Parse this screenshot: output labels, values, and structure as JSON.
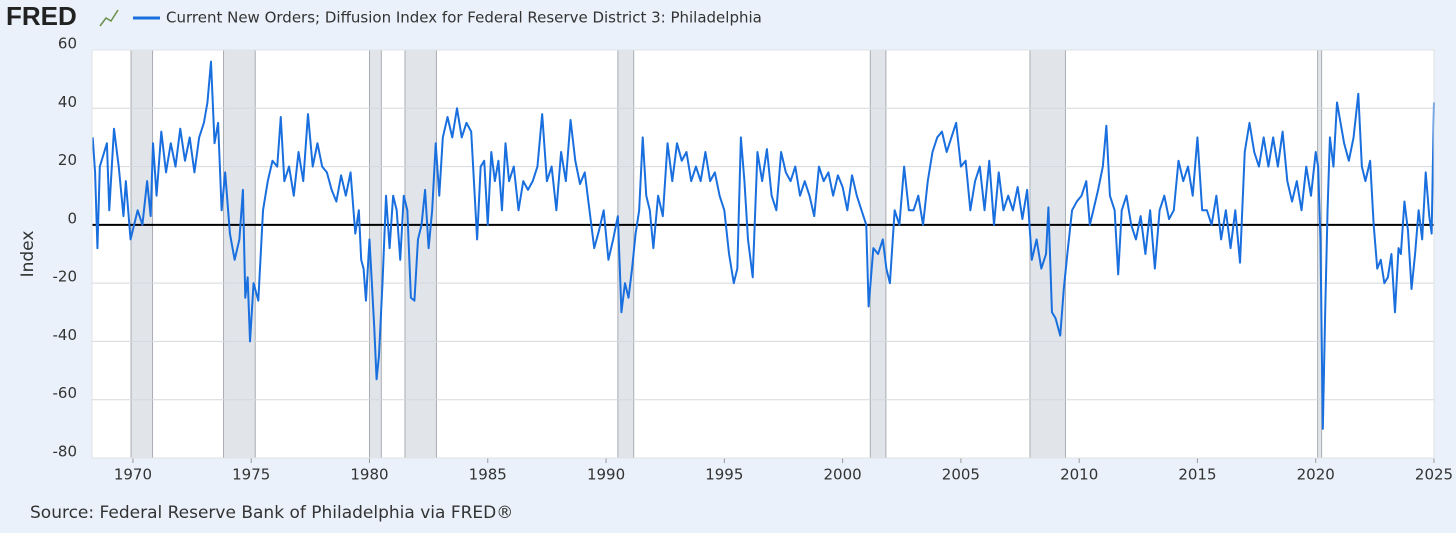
{
  "chart_data": {
    "type": "line",
    "logo": "FRED",
    "y_label": "Index",
    "source": "Source: Federal Reserve Bank of Philadelphia via FRED®",
    "xlim": [
      1968.27,
      2025
    ],
    "xticks": [
      1970,
      1975,
      1980,
      1985,
      1990,
      1995,
      2000,
      2005,
      2010,
      2015,
      2020,
      2025
    ],
    "ylim": [
      -80,
      60
    ],
    "yticks": [
      60,
      40,
      20,
      0,
      -20,
      -40,
      -60,
      -80
    ],
    "grid": true,
    "reference_line": 0,
    "recessions": [
      [
        1969.92,
        1970.83
      ],
      [
        1973.83,
        1975.17
      ],
      [
        1980.0,
        1980.5
      ],
      [
        1981.5,
        1982.83
      ],
      [
        1990.5,
        1991.17
      ],
      [
        2001.17,
        2001.83
      ],
      [
        2007.92,
        2009.42
      ],
      [
        2020.08,
        2020.25
      ]
    ],
    "x": [
      1968.3,
      1968.4,
      1968.5,
      1968.6,
      1968.9,
      1969.0,
      1969.2,
      1969.4,
      1969.6,
      1969.7,
      1969.9,
      1970.2,
      1970.4,
      1970.6,
      1970.75,
      1970.85,
      1971.0,
      1971.2,
      1971.4,
      1971.6,
      1971.8,
      1972.0,
      1972.2,
      1972.4,
      1972.6,
      1972.8,
      1973.0,
      1973.15,
      1973.3,
      1973.45,
      1973.6,
      1973.75,
      1973.9,
      1974.1,
      1974.3,
      1974.5,
      1974.65,
      1974.75,
      1974.85,
      1974.95,
      1975.1,
      1975.3,
      1975.5,
      1975.7,
      1975.9,
      1976.1,
      1976.25,
      1976.4,
      1976.6,
      1976.8,
      1977.0,
      1977.2,
      1977.4,
      1977.6,
      1977.8,
      1978.0,
      1978.2,
      1978.4,
      1978.6,
      1978.8,
      1979.0,
      1979.2,
      1979.4,
      1979.55,
      1979.65,
      1979.75,
      1979.85,
      1980.0,
      1980.1,
      1980.2,
      1980.3,
      1980.4,
      1980.55,
      1980.7,
      1980.85,
      1981.0,
      1981.15,
      1981.3,
      1981.45,
      1981.6,
      1981.75,
      1981.9,
      1982.05,
      1982.2,
      1982.35,
      1982.5,
      1982.65,
      1982.8,
      1982.95,
      1983.1,
      1983.3,
      1983.5,
      1983.7,
      1983.9,
      1984.1,
      1984.3,
      1984.55,
      1984.7,
      1984.85,
      1985.0,
      1985.15,
      1985.3,
      1985.45,
      1985.6,
      1985.75,
      1985.9,
      1986.1,
      1986.3,
      1986.5,
      1986.7,
      1986.9,
      1987.1,
      1987.3,
      1987.5,
      1987.7,
      1987.9,
      1988.1,
      1988.3,
      1988.5,
      1988.7,
      1988.9,
      1989.1,
      1989.3,
      1989.5,
      1989.7,
      1989.9,
      1990.1,
      1990.3,
      1990.5,
      1990.65,
      1990.8,
      1990.95,
      1991.1,
      1991.25,
      1991.4,
      1991.55,
      1991.7,
      1991.85,
      1992.0,
      1992.2,
      1992.4,
      1992.6,
      1992.8,
      1993.0,
      1993.2,
      1993.4,
      1993.6,
      1993.8,
      1994.0,
      1994.2,
      1994.4,
      1994.6,
      1994.8,
      1995.0,
      1995.2,
      1995.4,
      1995.55,
      1995.7,
      1995.85,
      1996.0,
      1996.2,
      1996.4,
      1996.6,
      1996.8,
      1997.0,
      1997.2,
      1997.4,
      1997.6,
      1997.8,
      1998.0,
      1998.2,
      1998.4,
      1998.6,
      1998.8,
      1999.0,
      1999.2,
      1999.4,
      1999.6,
      1999.8,
      2000.0,
      2000.2,
      2000.4,
      2000.6,
      2000.8,
      2001.0,
      2001.1,
      2001.3,
      2001.5,
      2001.7,
      2001.85,
      2002.0,
      2002.2,
      2002.4,
      2002.6,
      2002.8,
      2003.0,
      2003.2,
      2003.4,
      2003.6,
      2003.8,
      2004.0,
      2004.2,
      2004.4,
      2004.6,
      2004.8,
      2005.0,
      2005.2,
      2005.4,
      2005.6,
      2005.8,
      2006.0,
      2006.2,
      2006.4,
      2006.6,
      2006.8,
      2007.0,
      2007.2,
      2007.4,
      2007.6,
      2007.8,
      2008.0,
      2008.2,
      2008.4,
      2008.6,
      2008.7,
      2008.85,
      2009.0,
      2009.2,
      2009.35,
      2009.5,
      2009.7,
      2009.9,
      2010.1,
      2010.3,
      2010.45,
      2010.6,
      2010.8,
      2011.0,
      2011.15,
      2011.3,
      2011.5,
      2011.65,
      2011.8,
      2012.0,
      2012.2,
      2012.4,
      2012.6,
      2012.8,
      2013.0,
      2013.2,
      2013.4,
      2013.6,
      2013.8,
      2014.0,
      2014.2,
      2014.4,
      2014.6,
      2014.8,
      2015.0,
      2015.2,
      2015.4,
      2015.6,
      2015.8,
      2016.0,
      2016.2,
      2016.4,
      2016.6,
      2016.8,
      2017.0,
      2017.2,
      2017.4,
      2017.6,
      2017.8,
      2018.0,
      2018.2,
      2018.4,
      2018.6,
      2018.8,
      2019.0,
      2019.2,
      2019.4,
      2019.6,
      2019.8,
      2020.0,
      2020.1,
      2020.2,
      2020.3,
      2020.4,
      2020.5,
      2020.6,
      2020.75,
      2020.9,
      2021.05,
      2021.2,
      2021.4,
      2021.6,
      2021.8,
      2021.95,
      2022.1,
      2022.3,
      2022.45,
      2022.6,
      2022.75,
      2022.9,
      2023.05,
      2023.2,
      2023.35,
      2023.5,
      2023.6,
      2023.75,
      2023.9,
      2024.05,
      2024.2,
      2024.35,
      2024.5,
      2024.65,
      2024.8,
      2024.9,
      2025.0
    ],
    "series": [
      {
        "name": "Current New Orders; Diffusion Index for Federal Reserve District 3: Philadelphia",
        "color": "#1a6fdf",
        "values": [
          30,
          18,
          -8,
          20,
          28,
          5,
          33,
          20,
          3,
          15,
          -5,
          5,
          0,
          15,
          3,
          28,
          10,
          32,
          18,
          28,
          20,
          33,
          22,
          30,
          18,
          30,
          35,
          42,
          56,
          28,
          35,
          5,
          18,
          -3,
          -12,
          -5,
          12,
          -25,
          -18,
          -40,
          -20,
          -26,
          5,
          15,
          22,
          20,
          37,
          15,
          20,
          10,
          25,
          15,
          38,
          20,
          28,
          20,
          18,
          12,
          8,
          17,
          10,
          18,
          -3,
          5,
          -12,
          -15,
          -26,
          -5,
          -20,
          -35,
          -53,
          -45,
          -20,
          10,
          -8,
          10,
          5,
          -12,
          10,
          5,
          -25,
          -26,
          -5,
          0,
          12,
          -8,
          5,
          28,
          10,
          30,
          37,
          30,
          40,
          30,
          35,
          32,
          -5,
          20,
          22,
          0,
          25,
          15,
          22,
          5,
          28,
          15,
          20,
          5,
          15,
          12,
          15,
          20,
          38,
          15,
          20,
          5,
          25,
          15,
          36,
          22,
          14,
          18,
          5,
          -8,
          -2,
          5,
          -12,
          -5,
          3,
          -30,
          -20,
          -25,
          -15,
          -3,
          5,
          30,
          10,
          5,
          -8,
          10,
          3,
          28,
          15,
          28,
          22,
          25,
          15,
          20,
          15,
          25,
          15,
          18,
          10,
          5,
          -10,
          -20,
          -15,
          30,
          15,
          -5,
          -18,
          25,
          15,
          26,
          10,
          5,
          25,
          18,
          15,
          20,
          10,
          15,
          10,
          3,
          20,
          15,
          18,
          10,
          17,
          13,
          5,
          17,
          10,
          5,
          0,
          -28,
          -8,
          -10,
          -5,
          -15,
          -20,
          5,
          0,
          20,
          5,
          5,
          10,
          0,
          15,
          25,
          30,
          32,
          25,
          30,
          35,
          20,
          22,
          5,
          15,
          20,
          5,
          22,
          0,
          18,
          5,
          10,
          5,
          13,
          2,
          12,
          -12,
          -5,
          -15,
          -10,
          6,
          -30,
          -32,
          -38,
          -22,
          -10,
          5,
          8,
          10,
          15,
          0,
          5,
          12,
          20,
          34,
          10,
          5,
          -17,
          5,
          10,
          0,
          -5,
          3,
          -10,
          5,
          -15,
          5,
          10,
          2,
          5,
          22,
          15,
          20,
          10,
          30,
          5,
          5,
          0,
          10,
          -5,
          5,
          -8,
          5,
          -13,
          25,
          35,
          25,
          20,
          30,
          20,
          30,
          20,
          32,
          15,
          8,
          15,
          5,
          20,
          10,
          25,
          20,
          -5,
          -70,
          -30,
          5,
          30,
          20,
          42,
          35,
          28,
          22,
          30,
          45,
          20,
          15,
          22,
          0,
          -15,
          -12,
          -20,
          -18,
          -10,
          -30,
          -8,
          -10,
          8,
          -2,
          -22,
          -10,
          5,
          -5,
          18,
          3,
          -3,
          42
        ]
      }
    ]
  }
}
